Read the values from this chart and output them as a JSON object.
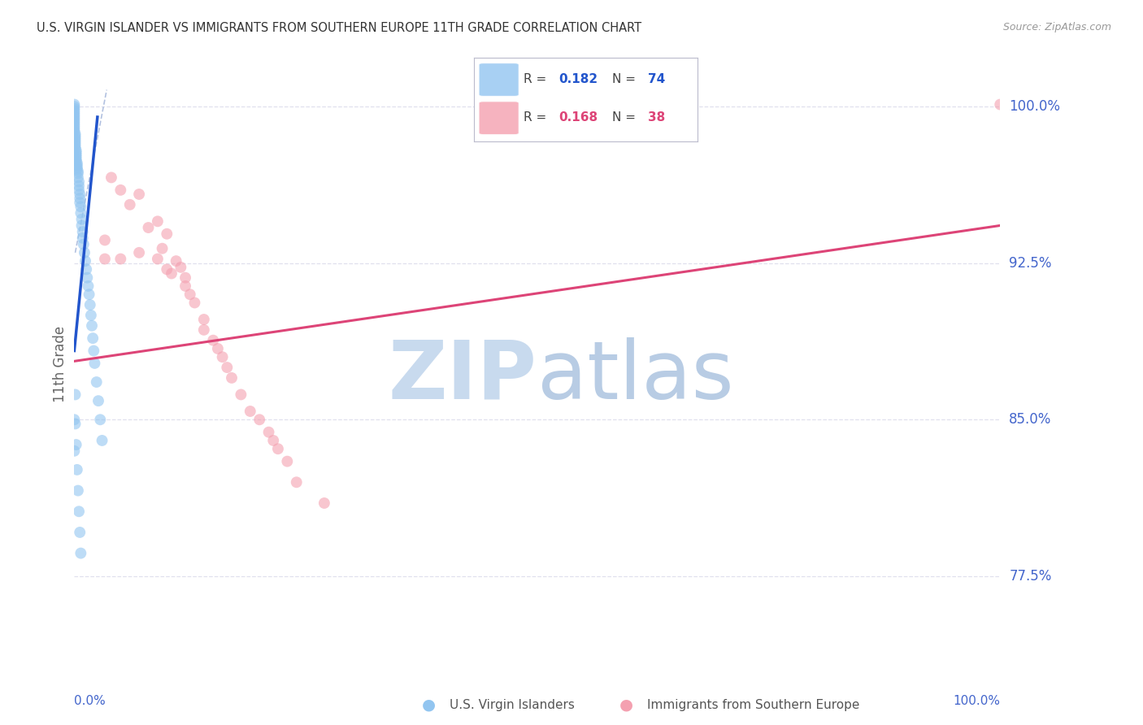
{
  "title": "U.S. VIRGIN ISLANDER VS IMMIGRANTS FROM SOUTHERN EUROPE 11TH GRADE CORRELATION CHART",
  "source": "Source: ZipAtlas.com",
  "ylabel": "11th Grade",
  "ytick_values": [
    0.775,
    0.85,
    0.925,
    1.0
  ],
  "xlim": [
    0.0,
    1.0
  ],
  "ylim": [
    0.728,
    1.025
  ],
  "blue_color": "#92C5F0",
  "pink_color": "#F4A0B0",
  "blue_trend_color": "#2255CC",
  "pink_trend_color": "#DD4477",
  "ref_line_color": "#AABBDD",
  "grid_color": "#E0E0EE",
  "title_color": "#333333",
  "axis_label_color": "#4466CC",
  "source_color": "#999999",
  "legend_R1": "0.182",
  "legend_N1": "74",
  "legend_R2": "0.168",
  "legend_N2": "38",
  "blue_trend_x0": 0.0,
  "blue_trend_x1": 0.025,
  "blue_trend_y0": 0.883,
  "blue_trend_y1": 0.995,
  "pink_trend_x0": 0.0,
  "pink_trend_x1": 1.0,
  "pink_trend_y0": 0.878,
  "pink_trend_y1": 0.943,
  "blue_points_x": [
    0.0,
    0.0,
    0.0,
    0.0,
    0.0,
    0.0,
    0.0,
    0.0,
    0.0,
    0.0,
    0.0,
    0.0,
    0.0,
    0.0,
    0.001,
    0.001,
    0.001,
    0.001,
    0.001,
    0.001,
    0.001,
    0.001,
    0.002,
    0.002,
    0.002,
    0.002,
    0.002,
    0.002,
    0.003,
    0.003,
    0.003,
    0.003,
    0.004,
    0.004,
    0.004,
    0.005,
    0.005,
    0.005,
    0.006,
    0.006,
    0.006,
    0.007,
    0.007,
    0.008,
    0.008,
    0.009,
    0.009,
    0.01,
    0.011,
    0.012,
    0.013,
    0.014,
    0.015,
    0.016,
    0.017,
    0.018,
    0.019,
    0.02,
    0.021,
    0.022,
    0.024,
    0.026,
    0.028,
    0.03,
    0.0,
    0.0,
    0.001,
    0.001,
    0.002,
    0.003,
    0.004,
    0.005,
    0.006,
    0.007
  ],
  "blue_points_y": [
    1.001,
    1.0,
    0.999,
    0.998,
    0.997,
    0.996,
    0.995,
    0.994,
    0.993,
    0.992,
    0.991,
    0.99,
    0.989,
    0.988,
    0.987,
    0.986,
    0.985,
    0.984,
    0.983,
    0.982,
    0.981,
    0.98,
    0.979,
    0.978,
    0.977,
    0.976,
    0.975,
    0.974,
    0.973,
    0.972,
    0.971,
    0.97,
    0.969,
    0.968,
    0.966,
    0.964,
    0.962,
    0.96,
    0.958,
    0.956,
    0.954,
    0.952,
    0.949,
    0.946,
    0.943,
    0.94,
    0.937,
    0.934,
    0.93,
    0.926,
    0.922,
    0.918,
    0.914,
    0.91,
    0.905,
    0.9,
    0.895,
    0.889,
    0.883,
    0.877,
    0.868,
    0.859,
    0.85,
    0.84,
    0.85,
    0.835,
    0.862,
    0.848,
    0.838,
    0.826,
    0.816,
    0.806,
    0.796,
    0.786
  ],
  "pink_points_x": [
    0.033,
    0.033,
    0.04,
    0.05,
    0.05,
    0.06,
    0.07,
    0.07,
    0.08,
    0.09,
    0.09,
    0.095,
    0.1,
    0.1,
    0.105,
    0.11,
    0.115,
    0.12,
    0.12,
    0.125,
    0.13,
    0.14,
    0.14,
    0.15,
    0.155,
    0.16,
    0.165,
    0.17,
    0.18,
    0.19,
    0.2,
    0.21,
    0.215,
    0.22,
    0.23,
    0.24,
    0.27,
    1.0
  ],
  "pink_points_y": [
    0.936,
    0.927,
    0.966,
    0.96,
    0.927,
    0.953,
    0.958,
    0.93,
    0.942,
    0.945,
    0.927,
    0.932,
    0.939,
    0.922,
    0.92,
    0.926,
    0.923,
    0.918,
    0.914,
    0.91,
    0.906,
    0.898,
    0.893,
    0.888,
    0.884,
    0.88,
    0.875,
    0.87,
    0.862,
    0.854,
    0.85,
    0.844,
    0.84,
    0.836,
    0.83,
    0.82,
    0.81,
    1.001
  ]
}
